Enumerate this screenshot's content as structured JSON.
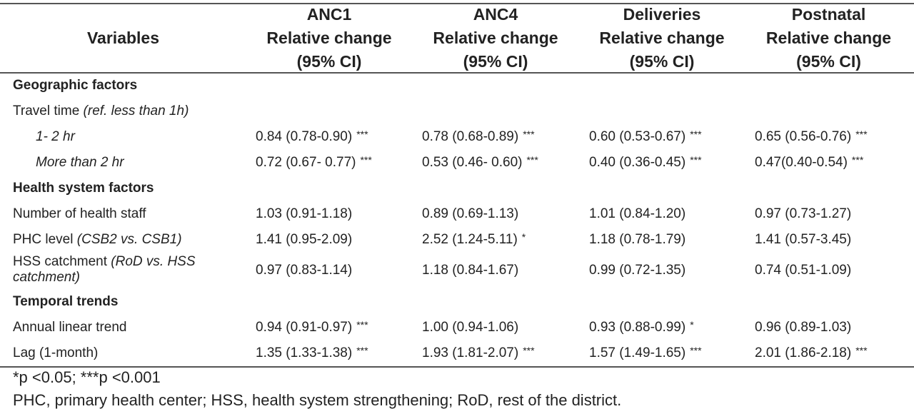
{
  "header": {
    "variables": "Variables",
    "columns": [
      {
        "line1": "ANC1",
        "line2": "Relative change",
        "line3": "(95% CI)"
      },
      {
        "line1": "ANC4",
        "line2": "Relative change",
        "line3": "(95% CI)"
      },
      {
        "line1": "Deliveries",
        "line2": "Relative change",
        "line3": "(95% CI)"
      },
      {
        "line1": "Postnatal",
        "line2": "Relative change",
        "line3": "(95% CI)"
      }
    ]
  },
  "sections": {
    "geo": "Geographic factors",
    "health": "Health system factors",
    "temporal": "Temporal trends"
  },
  "rows": {
    "travel": {
      "label": "Travel time ",
      "ref": "(ref. less than 1h)"
    },
    "r12": {
      "label": "1- 2 hr",
      "v": [
        "0.84 (0.78-0.90)",
        "0.78 (0.68-0.89)",
        "0.60 (0.53-0.67)",
        "0.65 (0.56-0.76)"
      ],
      "s": [
        "***",
        "***",
        "***",
        "***"
      ]
    },
    "r2plus": {
      "label": "More than 2 hr",
      "v": [
        "0.72 (0.67- 0.77)",
        "0.53 (0.46- 0.60)",
        "0.40 (0.36-0.45)",
        "0.47(0.40-0.54)"
      ],
      "s": [
        "***",
        "***",
        "***",
        "***"
      ]
    },
    "staff": {
      "label": "Number of health staff",
      "v": [
        "1.03 (0.91-1.18)",
        "0.89 (0.69-1.13)",
        "1.01 (0.84-1.20)",
        "0.97 (0.73-1.27)"
      ],
      "s": [
        "",
        "",
        "",
        ""
      ]
    },
    "phc": {
      "label": "PHC level ",
      "ref": "(CSB2 vs. CSB1)",
      "v": [
        "1.41 (0.95-2.09)",
        "2.52 (1.24-5.11)",
        "1.18 (0.78-1.79)",
        "1.41 (0.57-3.45)"
      ],
      "s": [
        "",
        "*",
        "",
        ""
      ]
    },
    "hss": {
      "label": "HSS catchment ",
      "ref": "(RoD vs. HSS catchment)",
      "v": [
        "0.97 (0.83-1.14)",
        "1.18 (0.84-1.67)",
        "0.99 (0.72-1.35)",
        "0.74 (0.51-1.09)"
      ],
      "s": [
        "",
        "",
        "",
        ""
      ]
    },
    "annual": {
      "label": "Annual linear trend",
      "v": [
        "0.94 (0.91-0.97)",
        "1.00 (0.94-1.06)",
        "0.93 (0.88-0.99)",
        "0.96 (0.89-1.03)"
      ],
      "s": [
        "***",
        "",
        "*",
        ""
      ]
    },
    "lag": {
      "label": "Lag (1-month)",
      "v": [
        "1.35 (1.33-1.38)",
        "1.93 (1.81-2.07)",
        "1.57 (1.49-1.65)",
        "2.01 (1.86-2.18)"
      ],
      "s": [
        "***",
        "***",
        "***",
        "***"
      ]
    }
  },
  "footer": {
    "sig_note": "*p <0.05; ***p <0.001",
    "abbrev": "PHC, primary health center; HSS, health system strengthening; RoD, rest of the district."
  }
}
